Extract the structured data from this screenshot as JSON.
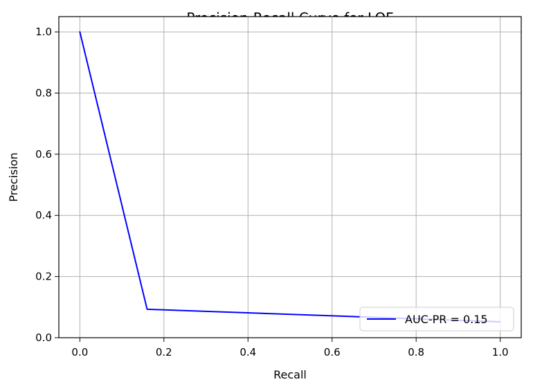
{
  "chart_data": {
    "type": "line",
    "title": "Precision-Recall Curve for LOF",
    "xlabel": "Recall",
    "ylabel": "Precision",
    "xlim": [
      -0.05,
      1.05
    ],
    "ylim": [
      0.0,
      1.05
    ],
    "xticks": [
      0.0,
      0.2,
      0.4,
      0.6,
      0.8,
      1.0
    ],
    "yticks": [
      0.0,
      0.2,
      0.4,
      0.6,
      0.8,
      1.0
    ],
    "xtick_labels": [
      "0.0",
      "0.2",
      "0.4",
      "0.6",
      "0.8",
      "1.0"
    ],
    "ytick_labels": [
      "0.0",
      "0.2",
      "0.4",
      "0.6",
      "0.8",
      "1.0"
    ],
    "grid": true,
    "legend": "lower-right",
    "series": [
      {
        "name": "AUC-PR = 0.15",
        "color": "#0000ff",
        "x": [
          0.0,
          0.16,
          1.0
        ],
        "y": [
          1.0,
          0.093,
          0.052
        ]
      }
    ]
  }
}
